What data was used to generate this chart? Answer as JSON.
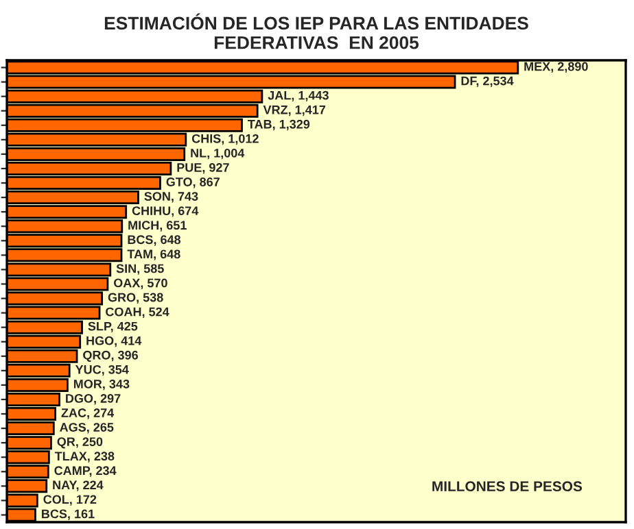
{
  "chart_data": {
    "type": "bar",
    "orientation": "horizontal",
    "title": "ESTIMACIÓN DE LOS IEP PARA LAS ENTIDADES\nFEDERATIVAS  EN 2005",
    "categories": [
      null,
      null,
      null,
      null,
      null,
      null,
      null,
      null,
      null,
      null,
      null,
      null,
      null,
      null,
      null,
      null,
      null,
      null,
      null,
      null,
      null,
      null,
      null,
      null,
      null,
      null,
      null,
      null,
      null,
      null,
      null,
      null
    ],
    "values": [
      2890,
      2534,
      1443,
      1417,
      1329,
      1012,
      1004,
      927,
      867,
      743,
      674,
      651,
      648,
      648,
      585,
      570,
      538,
      524,
      425,
      414,
      396,
      354,
      343,
      297,
      274,
      265,
      250,
      238,
      234,
      224,
      172,
      161
    ],
    "value_labels": [
      "MEX, 2,890",
      "DF, 2,534",
      "JAL, 1,443",
      "VRZ, 1,417",
      "TAB, 1,329",
      "CHIS, 1,012",
      "NL, 1,004",
      "PUE, 927",
      "GTO, 867",
      "SON, 743",
      "CHIHU, 674",
      "MICH, 651",
      "BCS, 648",
      "TAM, 648",
      "SIN, 585",
      "OAX, 570",
      "GRO, 538",
      "COAH, 524",
      "SLP, 425",
      "HGO, 414",
      "QRO, 396",
      "YUC, 354",
      "MOR, 343",
      "DGO, 297",
      "ZAC, 274",
      "AGS, 265",
      "QR, 250",
      "TLAX, 238",
      "CAMP, 234",
      "NAY, 224",
      "COL, 172",
      "BCS, 161"
    ],
    "color": "#ff6600",
    "xlim": [
      0,
      3500
    ],
    "grid": false,
    "legend": false,
    "annotations": [
      "MILLONES DE PESOS"
    ]
  }
}
